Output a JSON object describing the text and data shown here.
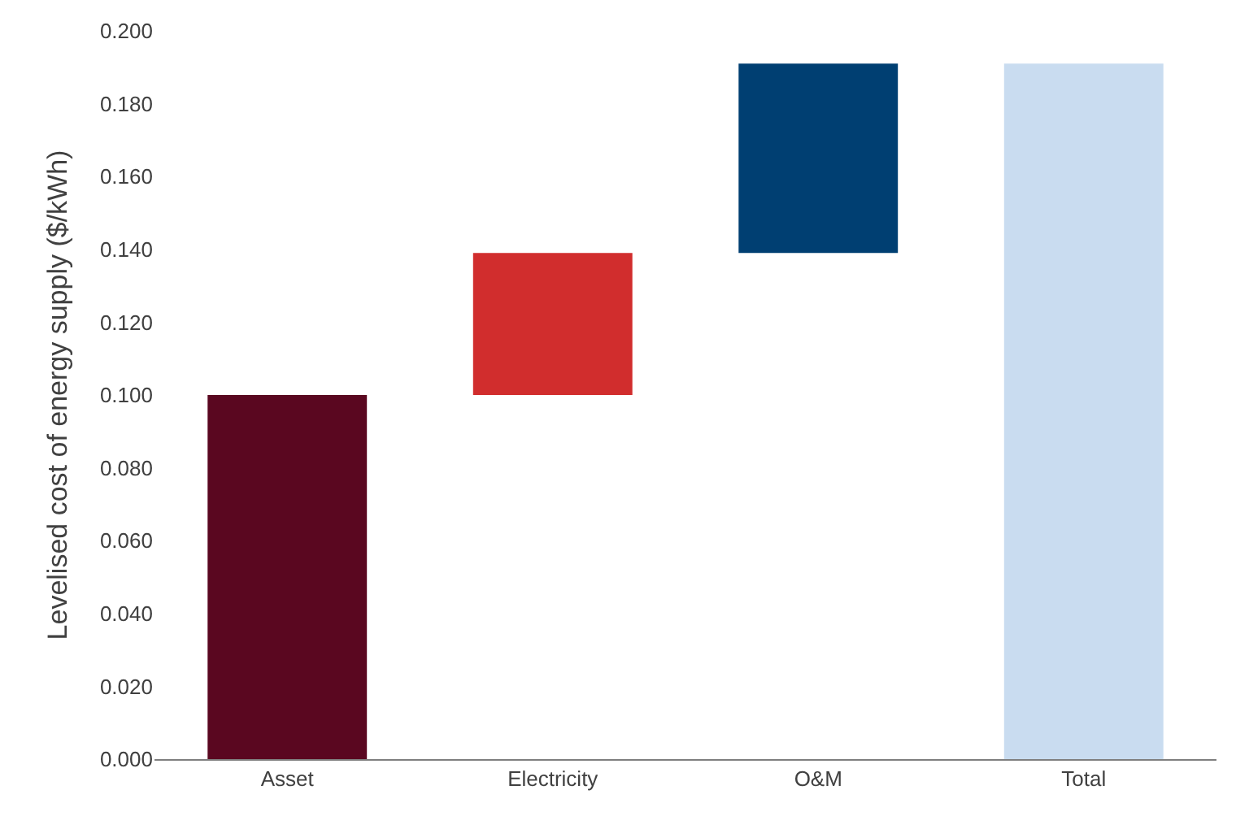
{
  "chart_data": {
    "type": "bar",
    "ylabel": "Levelised cost of energy supply ($/kWh)",
    "categories": [
      "Asset",
      "Electricity",
      "O&M",
      "Total"
    ],
    "values": [
      0.1,
      0.039,
      0.052,
      0.191
    ],
    "base": [
      0,
      0.1,
      0.139,
      0
    ],
    "colors": [
      "#5a0720",
      "#d12d2d",
      "#003f72",
      "#c9dcf0"
    ],
    "ylim": [
      0,
      0.2
    ],
    "yticks": [
      {
        "value": 0,
        "label": "0.000"
      },
      {
        "value": 0.02,
        "label": "0.020"
      },
      {
        "value": 0.04,
        "label": "0.040"
      },
      {
        "value": 0.06,
        "label": "0.060"
      },
      {
        "value": 0.08,
        "label": "0.080"
      },
      {
        "value": 0.1,
        "label": "0.100"
      },
      {
        "value": 0.12,
        "label": "0.120"
      },
      {
        "value": 0.14,
        "label": "0.140"
      },
      {
        "value": 0.16,
        "label": "0.160"
      },
      {
        "value": 0.18,
        "label": "0.180"
      },
      {
        "value": 0.2,
        "label": "0.200"
      }
    ]
  }
}
